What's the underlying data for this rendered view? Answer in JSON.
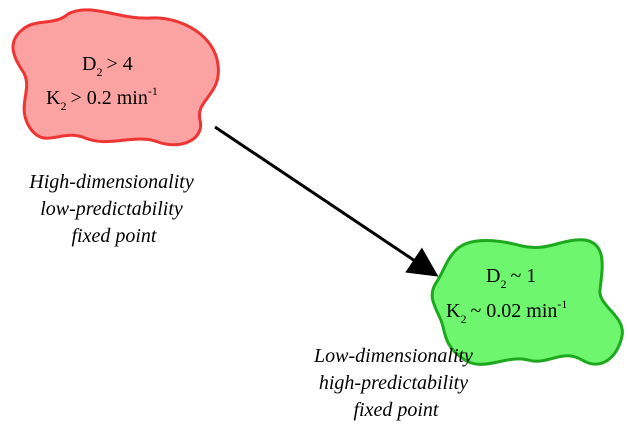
{
  "colors": {
    "high_fill": "#fba3a3",
    "high_stroke": "#ef3434",
    "low_fill": "#6ef66e",
    "low_stroke": "#1ea81e",
    "arrow": "#000000"
  },
  "high_point": {
    "eq1": {
      "var": "D",
      "sub": "2",
      "rel": "> 4"
    },
    "eq2": {
      "var": "K",
      "sub": "2",
      "rel": "> 0.2 min",
      "sup": "-1"
    },
    "caption": [
      "High-dimensionality",
      "low-predictability",
      "fixed point"
    ]
  },
  "low_point": {
    "eq1": {
      "var": "D",
      "sub": "2",
      "rel": "~ 1"
    },
    "eq2": {
      "var": "K",
      "sub": "2",
      "rel": "~ 0.02 min",
      "sup": "-1"
    },
    "caption": [
      "Low-dimensionality",
      "high-predictability",
      "fixed point"
    ]
  }
}
